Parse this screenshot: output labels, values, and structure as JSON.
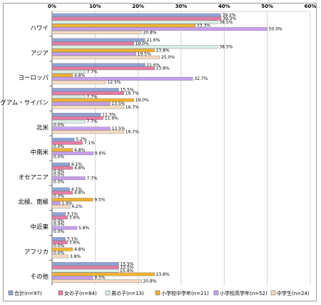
{
  "chart_data": {
    "type": "bar",
    "orientation": "horizontal",
    "title": "",
    "xlabel": "",
    "ylabel": "",
    "xlim": [
      0,
      60
    ],
    "ticks": [
      "0%",
      "10%",
      "20%",
      "30%",
      "40%",
      "50%",
      "60%"
    ],
    "grid": true,
    "legend_position": "bottom",
    "categories": [
      "ハワイ",
      "アジア",
      "ヨーロッパ",
      "グアム・サイパン",
      "北米",
      "中南米",
      "オセアニア",
      "北極、南極",
      "中近東",
      "アフリカ",
      "その他"
    ],
    "series": [
      {
        "name": "合計(n=97)",
        "color": "#8ea3d8",
        "values": [
          39.2,
          21.6,
          21.6,
          15.5,
          11.3,
          5.2,
          4.1,
          4.1,
          3.1,
          3.1,
          15.5
        ],
        "labels": [
          "39.2%",
          "21.6%",
          "21.6%",
          "15.5%",
          "11.3%",
          "5.2%",
          "4.1%",
          "4.1%",
          "3.1%",
          "3.1%",
          "15.5%"
        ]
      },
      {
        "name": "女の子(n=84)",
        "color": "#e87aa6",
        "values": [
          39.3,
          19.0,
          23.8,
          16.7,
          11.9,
          7.1,
          4.8,
          4.8,
          3.6,
          3.6,
          15.5
        ],
        "labels": [
          "39.3%",
          "19.0%",
          "23.8%",
          "16.7%",
          "11.9%",
          "7.1%",
          "4.8%",
          "4.8%",
          "3.6%",
          "3.6%",
          "15.5%"
        ]
      },
      {
        "name": "男の子(n=13)",
        "color": "#d9efe6",
        "values": [
          38.5,
          38.5,
          7.7,
          7.7,
          7.7,
          0.0,
          0.0,
          0.0,
          0.0,
          0.0,
          15.4
        ],
        "labels": [
          "38.5%",
          "38.5%",
          "7.7%",
          "7.7%",
          "7.7%",
          "0.0%",
          "0.0%",
          "0.0%",
          "0.0%",
          "0.0%",
          "15.4%"
        ]
      },
      {
        "name": "小学校中学年(n=21)",
        "color": "#f2b233",
        "values": [
          33.3,
          23.8,
          4.8,
          19.0,
          0.0,
          4.8,
          0.0,
          9.5,
          0.0,
          4.8,
          23.8
        ],
        "labels": [
          "33.3%",
          "23.8%",
          "4.8%",
          "19.0%",
          "0.0%",
          "4.8%",
          "0.0%",
          "9.5%",
          "0.0%",
          "4.8%",
          "23.8%"
        ]
      },
      {
        "name": "小学校高学年(n=52)",
        "color": "#c79ef0",
        "values": [
          50.0,
          19.5,
          32.7,
          13.5,
          13.5,
          9.6,
          7.7,
          1.9,
          5.8,
          0.0,
          9.5
        ],
        "labels": [
          "50.0%",
          "19.5%",
          "32.7%",
          "13.5%",
          "13.5%",
          "9.6%",
          "7.7%",
          "1.9%",
          "5.8%",
          "0.0%",
          "9.5%"
        ]
      },
      {
        "name": "中学生(n=24)",
        "color": "#f6dbc0",
        "values": [
          20.8,
          25.0,
          12.5,
          16.7,
          16.7,
          0.0,
          0.0,
          4.2,
          0.0,
          3.8,
          20.8
        ],
        "labels": [
          "20.8%",
          "25.0%",
          "12.5%",
          "16.7%",
          "16.7%",
          "0.0%",
          "0.0%",
          "4.2%",
          "0.0%",
          "3.8%",
          "20.8%"
        ]
      }
    ]
  }
}
